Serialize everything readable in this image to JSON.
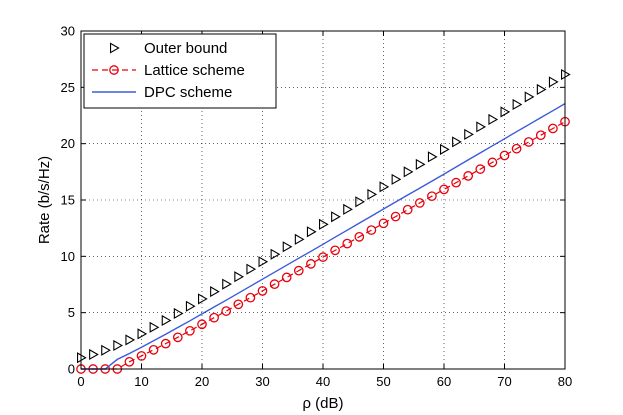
{
  "chart_data": {
    "type": "line",
    "title": "",
    "xlabel": "ρ (dB)",
    "ylabel": "Rate (b/s/Hz)",
    "xlim": [
      0,
      80
    ],
    "ylim": [
      0,
      30
    ],
    "xticks": [
      0,
      10,
      20,
      30,
      40,
      50,
      60,
      70,
      80
    ],
    "yticks": [
      0,
      5,
      10,
      15,
      20,
      25,
      30
    ],
    "grid": true,
    "legend_position": "top-left",
    "series": [
      {
        "name": "Outer bound",
        "style": "markers",
        "marker": "triangle-right",
        "color": "#000000",
        "x": [
          0,
          2,
          4,
          6,
          8,
          10,
          12,
          14,
          16,
          18,
          20,
          22,
          24,
          26,
          28,
          30,
          32,
          34,
          36,
          38,
          40,
          42,
          44,
          46,
          48,
          50,
          52,
          54,
          56,
          58,
          60,
          62,
          64,
          66,
          68,
          70,
          72,
          74,
          76,
          78,
          80
        ],
        "y": [
          1.0,
          1.29,
          1.66,
          2.09,
          2.58,
          3.12,
          3.7,
          4.31,
          4.93,
          5.57,
          6.22,
          6.87,
          7.53,
          8.19,
          8.86,
          9.52,
          10.18,
          10.85,
          11.51,
          12.18,
          12.84,
          13.51,
          14.17,
          14.84,
          15.5,
          16.17,
          16.83,
          17.5,
          18.16,
          18.83,
          19.49,
          20.16,
          20.82,
          21.49,
          22.15,
          22.82,
          23.48,
          24.15,
          24.81,
          25.48,
          26.14
        ]
      },
      {
        "name": "Lattice scheme",
        "style": "dashed-circles",
        "marker": "circle",
        "color": "#e8000b",
        "x": [
          0,
          2,
          4,
          6,
          8,
          10,
          12,
          14,
          16,
          18,
          20,
          22,
          24,
          26,
          28,
          30,
          32,
          34,
          36,
          38,
          40,
          42,
          44,
          46,
          48,
          50,
          52,
          54,
          56,
          58,
          60,
          62,
          64,
          66,
          68,
          70,
          72,
          74,
          76,
          78,
          80
        ],
        "y": [
          0.0,
          0.0,
          0.0,
          0.0,
          0.64,
          1.16,
          1.7,
          2.25,
          2.81,
          3.39,
          3.97,
          4.55,
          5.14,
          5.74,
          6.33,
          6.93,
          7.53,
          8.13,
          8.73,
          9.33,
          9.93,
          10.53,
          11.13,
          11.73,
          12.33,
          12.93,
          13.53,
          14.14,
          14.74,
          15.34,
          15.94,
          16.54,
          17.14,
          17.74,
          18.34,
          18.95,
          19.55,
          20.15,
          20.75,
          21.35,
          21.95
        ]
      },
      {
        "name": "DPC scheme",
        "style": "line",
        "marker": "none",
        "color": "#3b5bdb",
        "x": [
          0,
          2,
          4,
          6,
          8,
          10,
          12,
          14,
          16,
          18,
          20,
          22,
          24,
          26,
          28,
          30,
          32,
          34,
          36,
          38,
          40,
          42,
          44,
          46,
          48,
          50,
          52,
          54,
          56,
          58,
          60,
          62,
          64,
          66,
          68,
          70,
          72,
          74,
          76,
          78,
          80
        ],
        "y": [
          0.0,
          0.0,
          0.0,
          0.85,
          1.38,
          1.93,
          2.5,
          3.09,
          3.68,
          4.28,
          4.89,
          5.5,
          6.11,
          6.73,
          7.35,
          7.97,
          8.59,
          9.21,
          9.83,
          10.45,
          11.07,
          11.7,
          12.32,
          12.95,
          13.57,
          14.2,
          14.82,
          15.44,
          16.06,
          16.68,
          17.3,
          17.93,
          18.56,
          19.18,
          19.81,
          20.43,
          21.06,
          21.68,
          22.31,
          22.93,
          23.56
        ]
      }
    ]
  }
}
